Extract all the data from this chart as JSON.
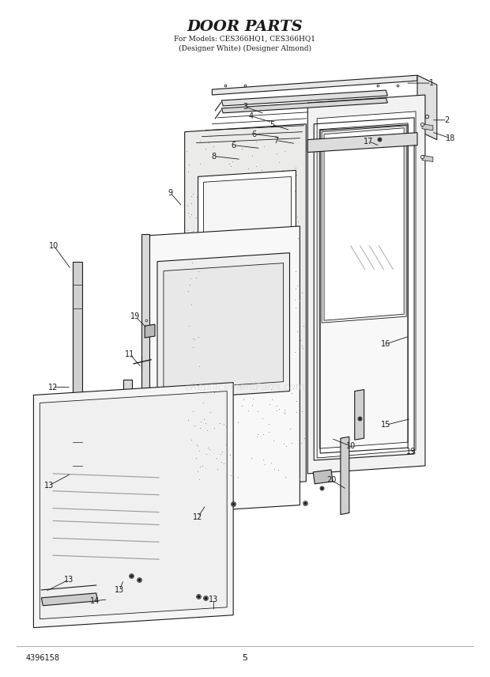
{
  "title": "DOOR PARTS",
  "subtitle_line1": "For Models: CES366HQ1, CES366HQ1",
  "subtitle_line2": "(Designer White) (Designer Almond)",
  "part_number": "4396158",
  "page_number": "5",
  "bg_color": "#ffffff",
  "line_color": "#1a1a1a",
  "watermark": "eReplacementParts.com",
  "fig_width": 6.2,
  "fig_height": 8.56,
  "dpi": 100,
  "title_fontsize": 12,
  "subtitle_fontsize": 6,
  "label_fontsize": 7,
  "footer_fontsize": 7
}
